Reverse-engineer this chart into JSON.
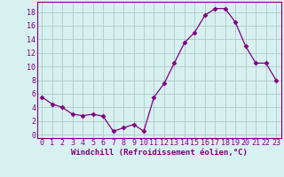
{
  "x": [
    0,
    1,
    2,
    3,
    4,
    5,
    6,
    7,
    8,
    9,
    10,
    11,
    12,
    13,
    14,
    15,
    16,
    17,
    18,
    19,
    20,
    21,
    22,
    23
  ],
  "y": [
    5.5,
    4.5,
    4.0,
    3.0,
    2.8,
    3.0,
    2.7,
    0.5,
    1.0,
    1.5,
    0.5,
    5.5,
    7.5,
    10.5,
    13.5,
    15.0,
    17.5,
    18.5,
    18.5,
    16.5,
    13.0,
    10.5,
    10.5,
    8.0
  ],
  "line_color": "#800080",
  "marker": "D",
  "marker_size": 2.5,
  "bg_color": "#d7f0f0",
  "grid_color": "#b0c8c8",
  "xlabel": "Windchill (Refroidissement éolien,°C)",
  "xlabel_color": "#800080",
  "tick_color": "#800080",
  "ylim": [
    -0.5,
    19.5
  ],
  "xlim": [
    -0.5,
    23.5
  ],
  "yticks": [
    0,
    2,
    4,
    6,
    8,
    10,
    12,
    14,
    16,
    18
  ],
  "xticks": [
    0,
    1,
    2,
    3,
    4,
    5,
    6,
    7,
    8,
    9,
    10,
    11,
    12,
    13,
    14,
    15,
    16,
    17,
    18,
    19,
    20,
    21,
    22,
    23
  ],
  "label_fontsize": 6.5,
  "tick_fontsize": 6.0
}
